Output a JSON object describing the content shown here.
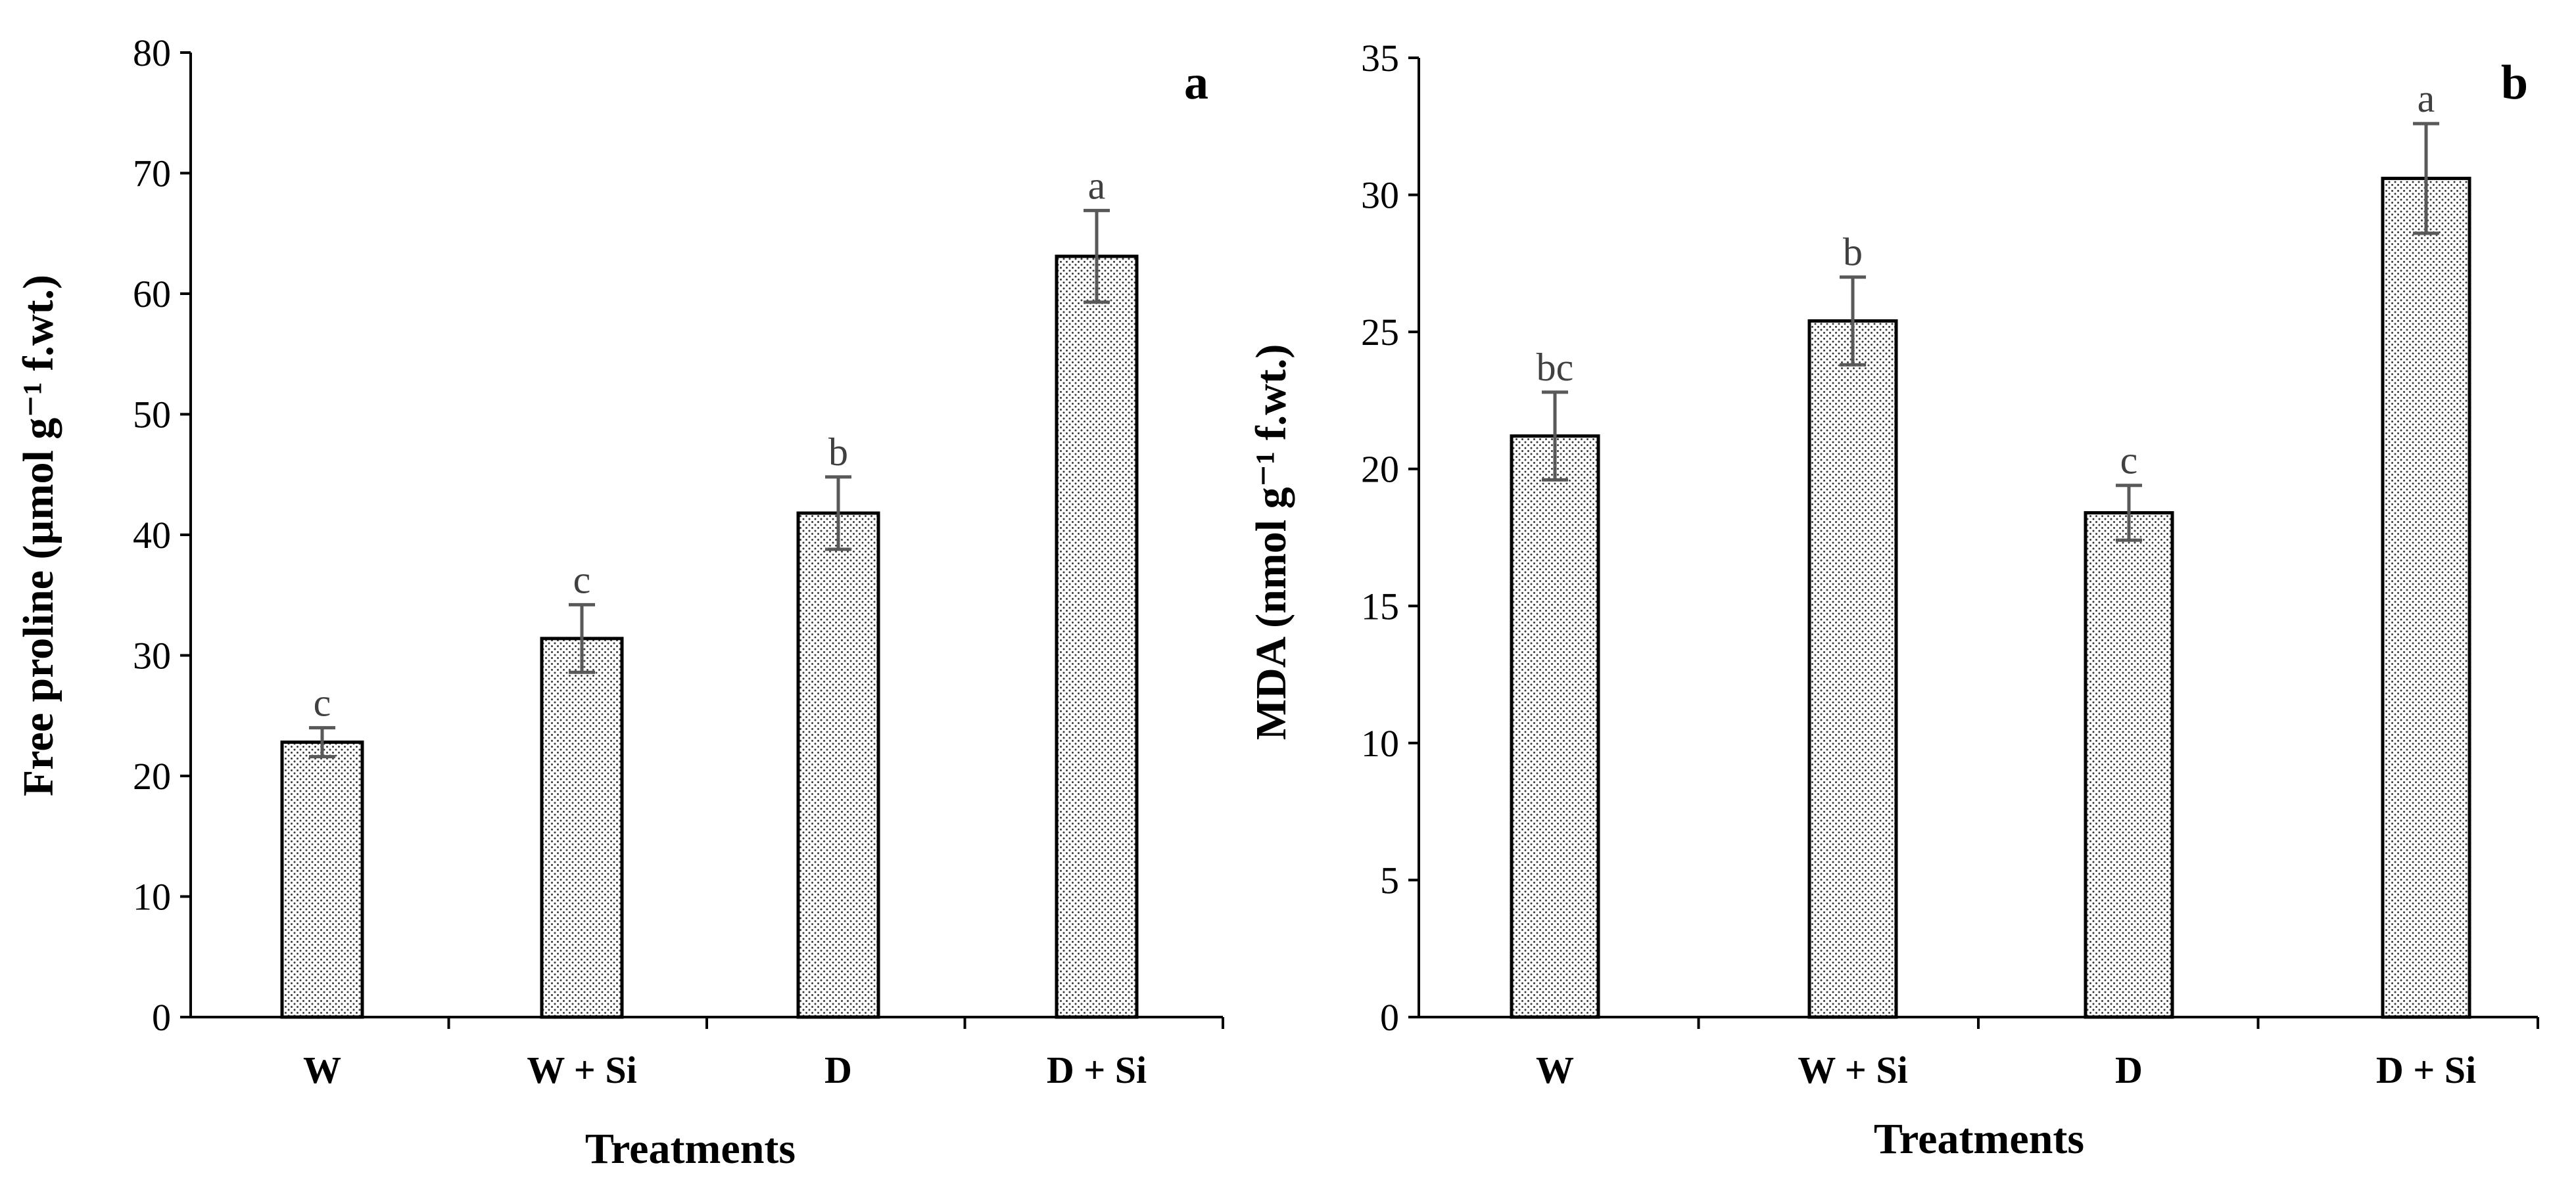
{
  "colors": {
    "bar_outline": "#000000",
    "bar_dot": "#3a3a3a",
    "error_bar": "#595959",
    "letter": "#404040"
  },
  "chart_data": [
    {
      "type": "bar",
      "panel": "a",
      "categories": [
        "W",
        "W + Si",
        "D",
        "D + Si"
      ],
      "values": [
        22.8,
        31.4,
        41.8,
        63.1
      ],
      "errors": [
        1.2,
        2.8,
        3.0,
        3.8
      ],
      "letters": [
        "c",
        "c",
        "b",
        "a"
      ],
      "ylabel": "Free proline (µmol g⁻¹ f.wt.)",
      "xlabel": "Treatments",
      "ylim": [
        0,
        80
      ],
      "yticks": [
        "0",
        "10",
        "20",
        "30",
        "40",
        "50",
        "60",
        "70",
        "80"
      ],
      "grid": false
    },
    {
      "type": "bar",
      "panel": "b",
      "categories": [
        "W",
        "W + Si",
        "D",
        "D + Si"
      ],
      "values": [
        21.2,
        25.4,
        18.4,
        30.6
      ],
      "errors": [
        1.6,
        1.6,
        1.0,
        2.0
      ],
      "letters": [
        "bc",
        "b",
        "c",
        "a"
      ],
      "ylabel": "MDA (nmol g⁻¹ f.wt.)",
      "xlabel": "Treatments",
      "ylim": [
        0,
        35
      ],
      "yticks": [
        "0",
        "5",
        "10",
        "15",
        "20",
        "25",
        "30",
        "35"
      ],
      "grid": false
    }
  ]
}
